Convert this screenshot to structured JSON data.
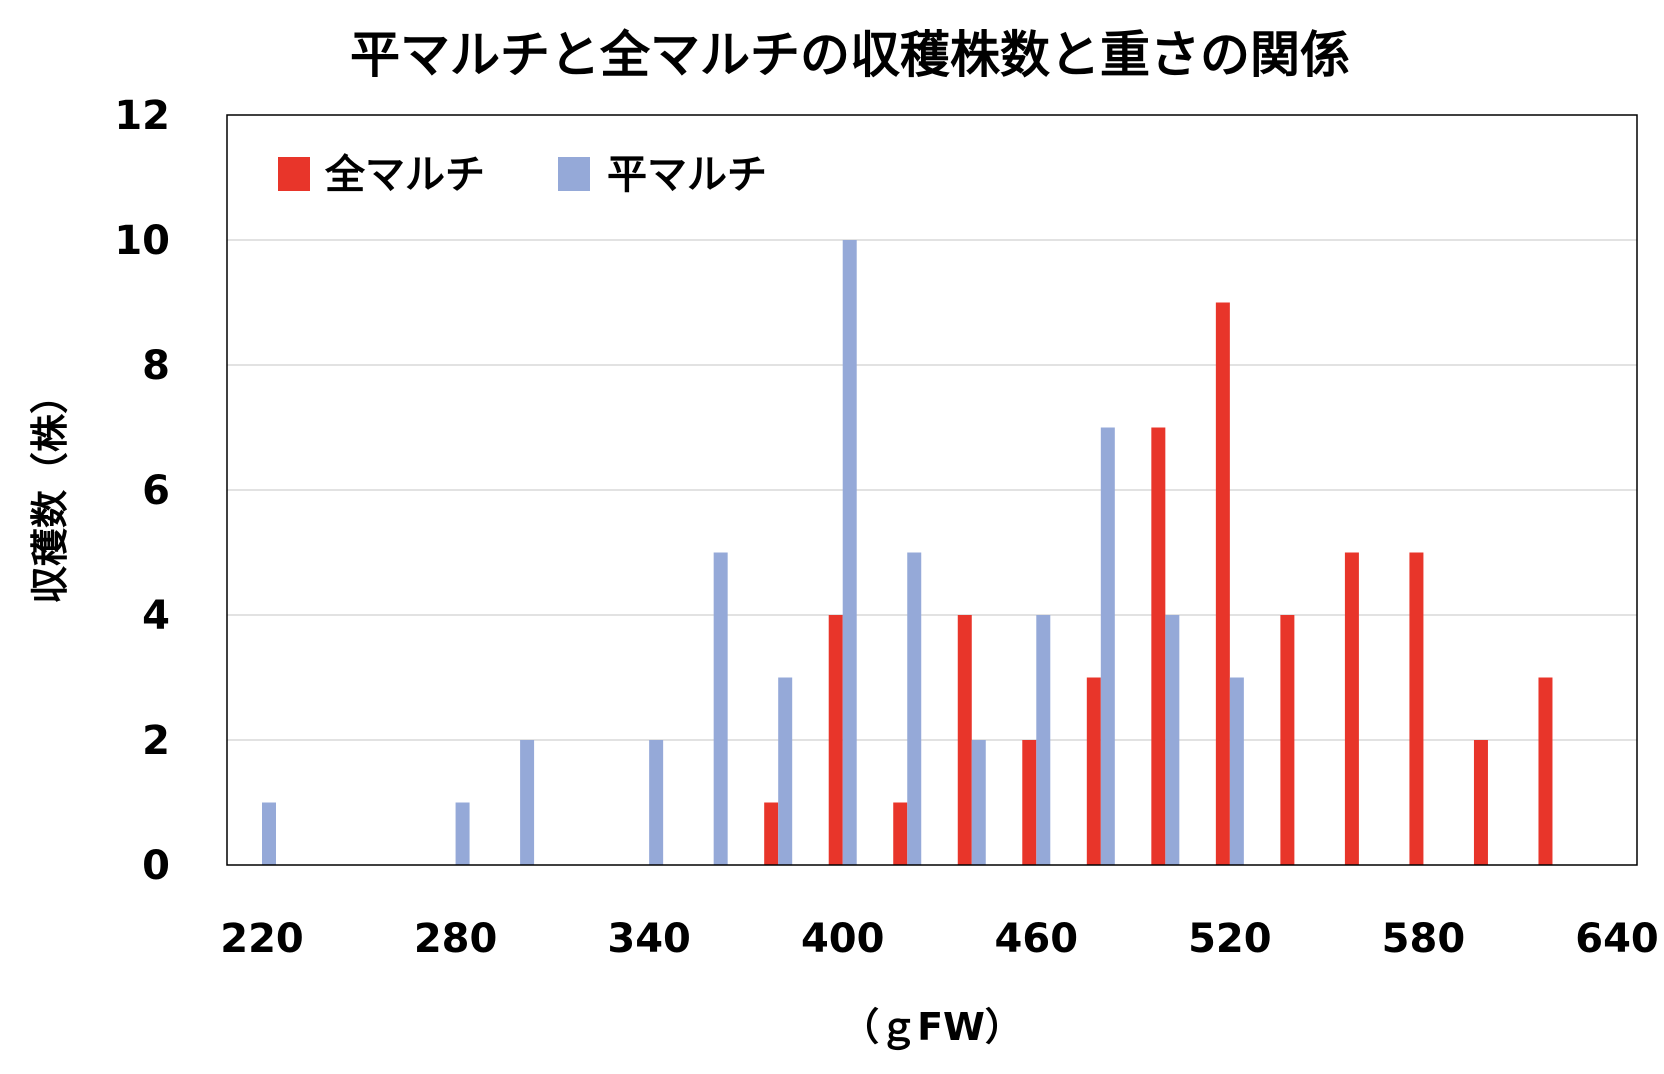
{
  "chart_data": {
    "type": "bar",
    "title": "平マルチと全マルチの収穫株数と重さの関係",
    "xlabel": "（ｇFW）",
    "ylabel": "収穫数（株）",
    "xlim": [
      220,
      640
    ],
    "ylim": [
      0,
      12
    ],
    "xticks": [
      "220",
      "280",
      "340",
      "400",
      "460",
      "520",
      "580",
      "640"
    ],
    "yticks": [
      "0",
      "2",
      "4",
      "6",
      "8",
      "10",
      "12"
    ],
    "grid": true,
    "legend_position": "top-left",
    "series": [
      {
        "name": "全マルチ",
        "color": "#e8352a",
        "points": [
          {
            "x": 380,
            "y": 1
          },
          {
            "x": 400,
            "y": 4
          },
          {
            "x": 420,
            "y": 1
          },
          {
            "x": 440,
            "y": 4
          },
          {
            "x": 460,
            "y": 2
          },
          {
            "x": 480,
            "y": 3
          },
          {
            "x": 500,
            "y": 7
          },
          {
            "x": 520,
            "y": 9
          },
          {
            "x": 540,
            "y": 4
          },
          {
            "x": 560,
            "y": 5
          },
          {
            "x": 580,
            "y": 5
          },
          {
            "x": 600,
            "y": 2
          },
          {
            "x": 620,
            "y": 3
          }
        ]
      },
      {
        "name": "平マルチ",
        "color": "#95a9d8",
        "points": [
          {
            "x": 220,
            "y": 1
          },
          {
            "x": 280,
            "y": 1
          },
          {
            "x": 300,
            "y": 2
          },
          {
            "x": 340,
            "y": 2
          },
          {
            "x": 360,
            "y": 5
          },
          {
            "x": 380,
            "y": 3
          },
          {
            "x": 400,
            "y": 10
          },
          {
            "x": 420,
            "y": 5
          },
          {
            "x": 440,
            "y": 2
          },
          {
            "x": 460,
            "y": 4
          },
          {
            "x": 480,
            "y": 7
          },
          {
            "x": 500,
            "y": 4
          },
          {
            "x": 520,
            "y": 3
          }
        ]
      }
    ]
  }
}
